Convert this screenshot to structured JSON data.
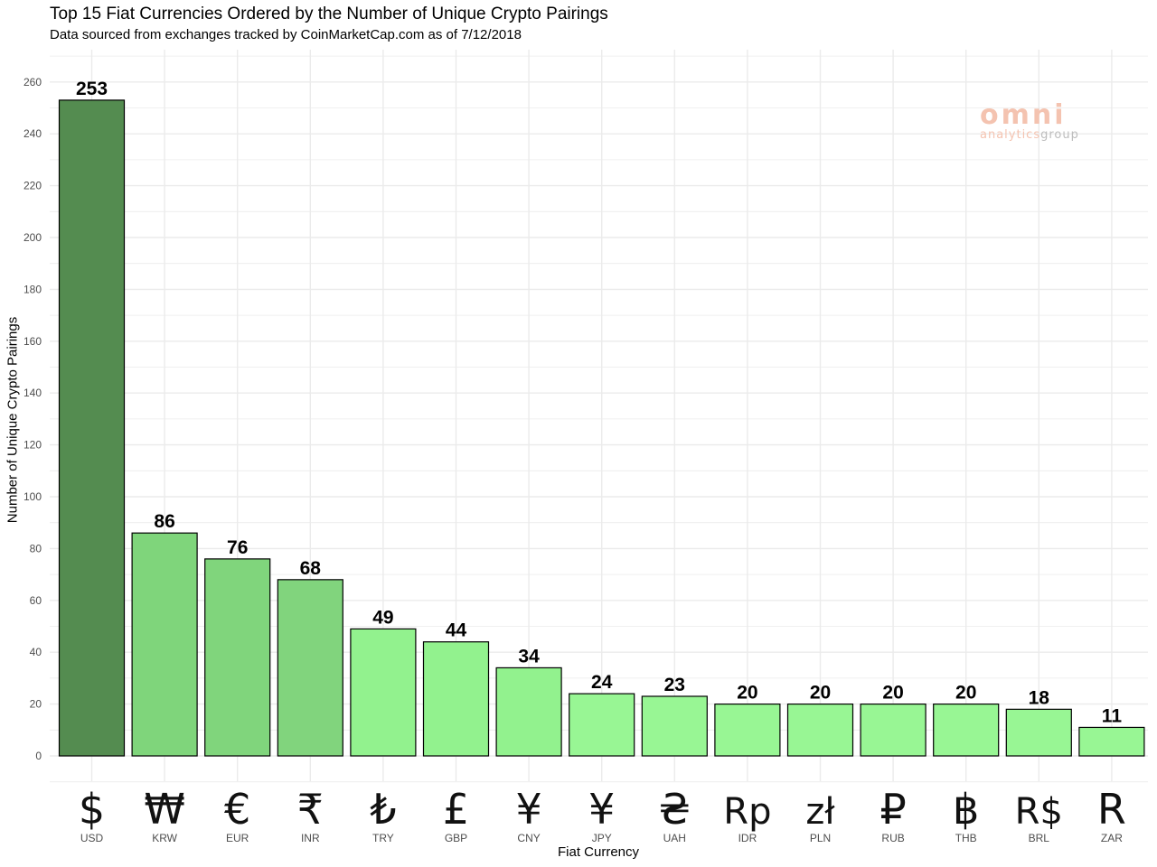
{
  "chart_data": {
    "type": "bar",
    "title": "Top 15 Fiat Currencies Ordered by the Number of Unique Crypto Pairings",
    "subtitle": "Data sourced from exchanges tracked by CoinMarketCap.com as of 7/12/2018",
    "xlabel": "Fiat Currency",
    "ylabel": "Number of Unique Crypto Pairings",
    "ylim": [
      0,
      270
    ],
    "yticks": [
      0,
      20,
      40,
      60,
      80,
      100,
      120,
      140,
      160,
      180,
      200,
      220,
      240,
      260
    ],
    "grid": true,
    "categories": [
      "USD",
      "KRW",
      "EUR",
      "INR",
      "TRY",
      "GBP",
      "CNY",
      "JPY",
      "UAH",
      "IDR",
      "PLN",
      "RUB",
      "THB",
      "BRL",
      "ZAR"
    ],
    "symbols": [
      "$",
      "₩",
      "€",
      "₹",
      "₺",
      "£",
      "¥",
      "¥",
      "₴",
      "Rp",
      "zł",
      "₽",
      "฿",
      "R$",
      "R"
    ],
    "values": [
      253,
      86,
      76,
      68,
      49,
      44,
      34,
      24,
      23,
      20,
      20,
      20,
      20,
      18,
      11
    ],
    "bar_colors": [
      "#548c50",
      "#7fd57b",
      "#80d57c",
      "#81d47d",
      "#92f28e",
      "#92f28e",
      "#92f28e",
      "#98f694",
      "#98f694",
      "#98f694",
      "#98f694",
      "#98f694",
      "#98f694",
      "#98f694",
      "#98f694"
    ],
    "bar_border_color": "#000000",
    "grid_color": "#ebebeb"
  },
  "watermark": {
    "main": "omni",
    "sub_part1": "analytics",
    "sub_part2": "group"
  }
}
